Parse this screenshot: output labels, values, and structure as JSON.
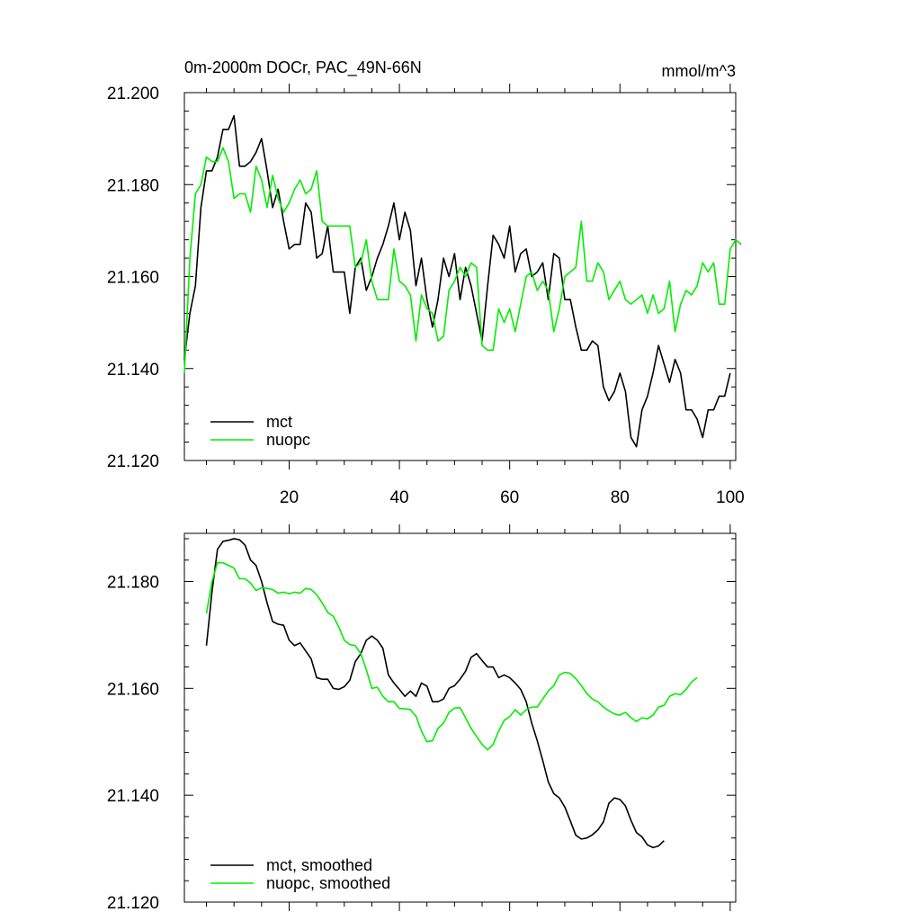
{
  "chart_data": [
    {
      "type": "line",
      "title": "0m-2000m DOCr, PAC_49N-66N",
      "units": "mmol/m^3",
      "xlim": [
        1,
        101
      ],
      "ylim": [
        21.12,
        21.2
      ],
      "xticks": [
        20,
        40,
        60,
        80,
        100
      ],
      "xtick_labels": [
        "20",
        "40",
        "60",
        "80",
        "100"
      ],
      "yticks": [
        21.12,
        21.14,
        21.16,
        21.18,
        21.2
      ],
      "ytick_labels": [
        "21.120",
        "21.140",
        "21.160",
        "21.180",
        "21.200"
      ],
      "legend_position": "bottom-left",
      "series": [
        {
          "name": "mct",
          "color": "#000000",
          "x_start": 1,
          "values": [
            21.142,
            21.152,
            21.158,
            21.175,
            21.183,
            21.183,
            21.186,
            21.192,
            21.192,
            21.195,
            21.184,
            21.184,
            21.185,
            21.187,
            21.19,
            21.183,
            21.175,
            21.179,
            21.172,
            21.166,
            21.167,
            21.167,
            21.176,
            21.174,
            21.164,
            21.165,
            21.171,
            21.161,
            21.161,
            21.161,
            21.152,
            21.162,
            21.164,
            21.157,
            21.16,
            21.164,
            21.167,
            21.171,
            21.176,
            21.168,
            21.174,
            21.17,
            21.158,
            21.164,
            21.155,
            21.149,
            21.155,
            21.164,
            21.16,
            21.165,
            21.155,
            21.162,
            21.158,
            21.152,
            21.146,
            21.158,
            21.169,
            21.167,
            21.164,
            21.171,
            21.161,
            21.165,
            21.166,
            21.16,
            21.161,
            21.163,
            21.155,
            21.165,
            21.164,
            21.155,
            21.155,
            21.149,
            21.144,
            21.144,
            21.146,
            21.145,
            21.136,
            21.133,
            21.135,
            21.139,
            21.135,
            21.125,
            21.123,
            21.131,
            21.134,
            21.139,
            21.145,
            21.141,
            21.137,
            21.142,
            21.139,
            21.131,
            21.131,
            21.129,
            21.125,
            21.131,
            21.131,
            21.134,
            21.134,
            21.139
          ]
        },
        {
          "name": "nuopc",
          "color": "#00ee00",
          "x_start": 1,
          "values": [
            21.139,
            21.164,
            21.178,
            21.18,
            21.186,
            21.185,
            21.185,
            21.188,
            21.185,
            21.177,
            21.178,
            21.178,
            21.174,
            21.184,
            21.181,
            21.175,
            21.182,
            21.177,
            21.174,
            21.176,
            21.179,
            21.181,
            21.178,
            21.179,
            21.183,
            21.172,
            21.171,
            21.171,
            21.171,
            21.171,
            21.171,
            21.162,
            21.163,
            21.168,
            21.159,
            21.155,
            21.155,
            21.155,
            21.166,
            21.159,
            21.158,
            21.156,
            21.146,
            21.156,
            21.153,
            21.152,
            21.146,
            21.147,
            21.157,
            21.159,
            21.162,
            21.16,
            21.163,
            21.162,
            21.145,
            21.144,
            21.144,
            21.153,
            21.15,
            21.153,
            21.148,
            21.154,
            21.16,
            21.161,
            21.157,
            21.159,
            21.157,
            21.148,
            21.153,
            21.16,
            21.161,
            21.162,
            21.172,
            21.159,
            21.159,
            21.163,
            21.161,
            21.155,
            21.157,
            21.159,
            21.155,
            21.154,
            21.155,
            21.156,
            21.152,
            21.156,
            21.152,
            21.153,
            21.159,
            21.148,
            21.154,
            21.157,
            21.156,
            21.158,
            21.163,
            21.161,
            21.163,
            21.154,
            21.154,
            21.166,
            21.168,
            21.167
          ]
        }
      ]
    },
    {
      "type": "line",
      "title": "",
      "xlim": [
        1,
        101
      ],
      "ylim": [
        21.12,
        21.189
      ],
      "xticks": [
        20,
        40,
        60,
        80,
        100
      ],
      "xtick_labels": [],
      "yticks": [
        21.12,
        21.14,
        21.16,
        21.18
      ],
      "ytick_labels": [
        "21.120",
        "21.140",
        "21.160",
        "21.180"
      ],
      "legend_position": "bottom-left",
      "series": [
        {
          "name": "mct, smoothed",
          "color": "#000000",
          "x_start": 5,
          "values": [
            21.168,
            21.178,
            21.186,
            21.1875,
            21.1877,
            21.188,
            21.1878,
            21.1868,
            21.184,
            21.183,
            21.18,
            21.176,
            21.1725,
            21.172,
            21.1718,
            21.169,
            21.168,
            21.1685,
            21.167,
            21.1655,
            21.162,
            21.1617,
            21.1617,
            21.16,
            21.1598,
            21.1603,
            21.1615,
            21.165,
            21.1665,
            21.169,
            21.1698,
            21.169,
            21.1675,
            21.1625,
            21.161,
            21.1598,
            21.1585,
            21.1595,
            21.1585,
            21.161,
            21.1604,
            21.1575,
            21.1575,
            21.158,
            21.16,
            21.1605,
            21.1617,
            21.1632,
            21.1658,
            21.1665,
            21.1652,
            21.164,
            21.164,
            21.162,
            21.1625,
            21.162,
            21.161,
            21.1598,
            21.1575,
            21.1535,
            21.1502,
            21.1465,
            21.1425,
            21.1403,
            21.1395,
            21.1378,
            21.1352,
            21.1325,
            21.1318,
            21.132,
            21.1326,
            21.1335,
            21.135,
            21.1385,
            21.1395,
            21.1392,
            21.138,
            21.1353,
            21.133,
            21.1322,
            21.1307,
            21.1302,
            21.1305,
            21.1315
          ]
        },
        {
          "name": "nuopc, smoothed",
          "color": "#00ee00",
          "x_start": 5,
          "values": [
            21.174,
            21.18,
            21.1835,
            21.1835,
            21.183,
            21.1825,
            21.1805,
            21.1805,
            21.1797,
            21.1783,
            21.1788,
            21.1787,
            21.1785,
            21.1778,
            21.178,
            21.1777,
            21.178,
            21.1778,
            21.1787,
            21.1785,
            21.1775,
            21.176,
            21.1742,
            21.1735,
            21.1715,
            21.169,
            21.1682,
            21.168,
            21.1665,
            21.1635,
            21.16,
            21.1602,
            21.1585,
            21.1575,
            21.1575,
            21.1562,
            21.1562,
            21.156,
            21.1548,
            21.152,
            21.15,
            21.1502,
            21.1525,
            21.1535,
            21.1555,
            21.1563,
            21.1564,
            21.1545,
            21.1525,
            21.151,
            21.1495,
            21.1485,
            21.1495,
            21.152,
            21.154,
            21.1547,
            21.156,
            21.155,
            21.156,
            21.1565,
            21.1565,
            21.158,
            21.1595,
            21.1605,
            21.1625,
            21.163,
            21.1628,
            21.1618,
            21.1605,
            21.159,
            21.158,
            21.1575,
            21.1565,
            21.1558,
            21.1552,
            21.155,
            21.1555,
            21.1545,
            21.1538,
            21.1545,
            21.1543,
            21.155,
            21.1565,
            21.1568,
            21.1585,
            21.159,
            21.1588,
            21.1598,
            21.1612,
            21.162
          ]
        }
      ]
    }
  ]
}
